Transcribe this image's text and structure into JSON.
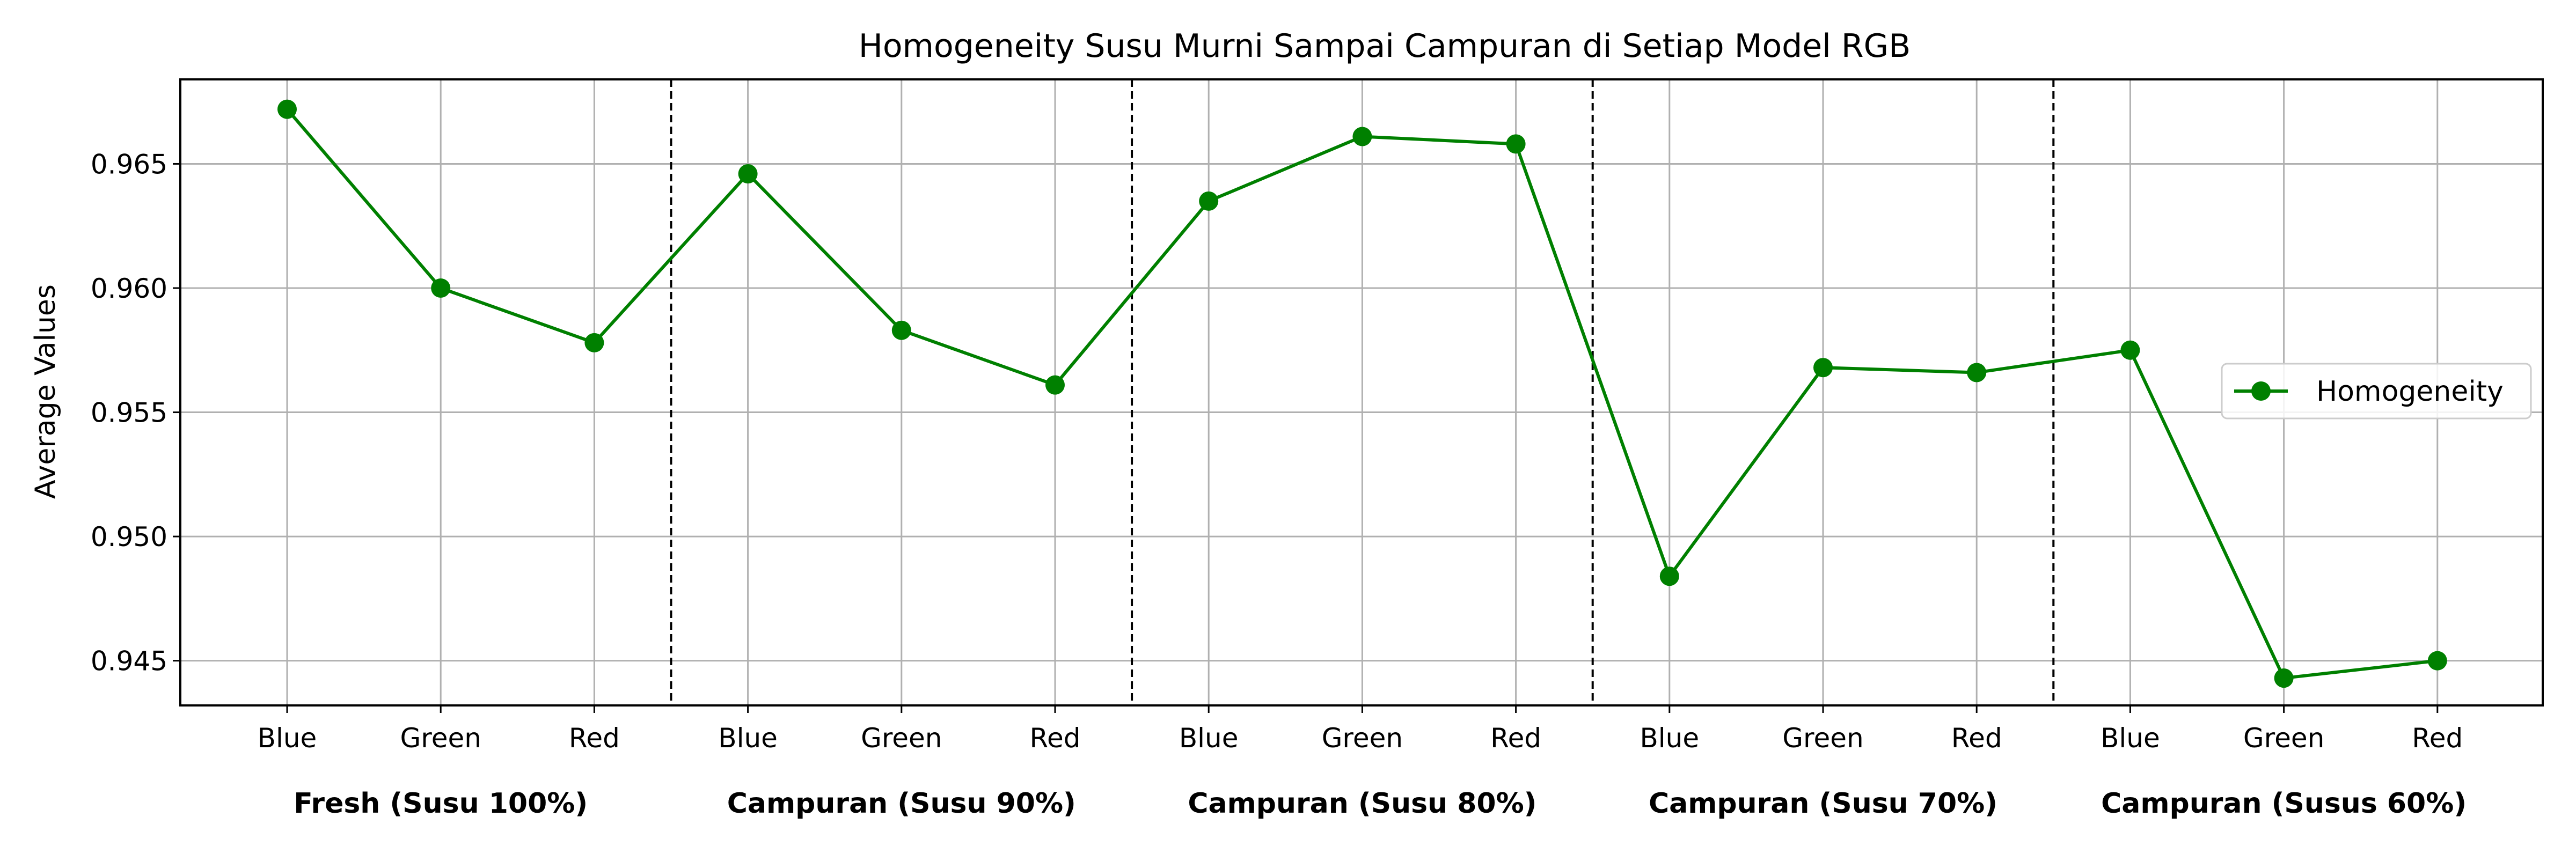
{
  "chart_data": {
    "type": "line",
    "title": "Homogeneity Susu Murni Sampai Campuran di Setiap Model RGB",
    "xlabel": "",
    "ylabel": "Average Values",
    "categories": [
      "Blue",
      "Green",
      "Red",
      "Blue",
      "Green",
      "Red",
      "Blue",
      "Green",
      "Red",
      "Blue",
      "Green",
      "Red",
      "Blue",
      "Green",
      "Red"
    ],
    "groups": [
      "Fresh (Susu 100%)",
      "Campuran (Susu 90%)",
      "Campuran (Susu 80%)",
      "Campuran (Susu 70%)",
      "Campuran (Susus 60%)"
    ],
    "series": [
      {
        "name": "Homogeneity",
        "color": "#008000",
        "marker": "circle",
        "values": [
          0.9672,
          0.96,
          0.9578,
          0.9646,
          0.9583,
          0.9561,
          0.9635,
          0.9661,
          0.9658,
          0.9484,
          0.9568,
          0.9566,
          0.9575,
          0.9443,
          0.945
        ]
      }
    ],
    "ylim": [
      0.9432,
      0.9684
    ],
    "yticks": [
      0.945,
      0.95,
      0.955,
      0.96,
      0.965
    ],
    "ytick_labels": [
      "0.945",
      "0.950",
      "0.955",
      "0.960",
      "0.965"
    ],
    "group_separators": "dashed",
    "grid": true,
    "legend_position": "center-right"
  }
}
